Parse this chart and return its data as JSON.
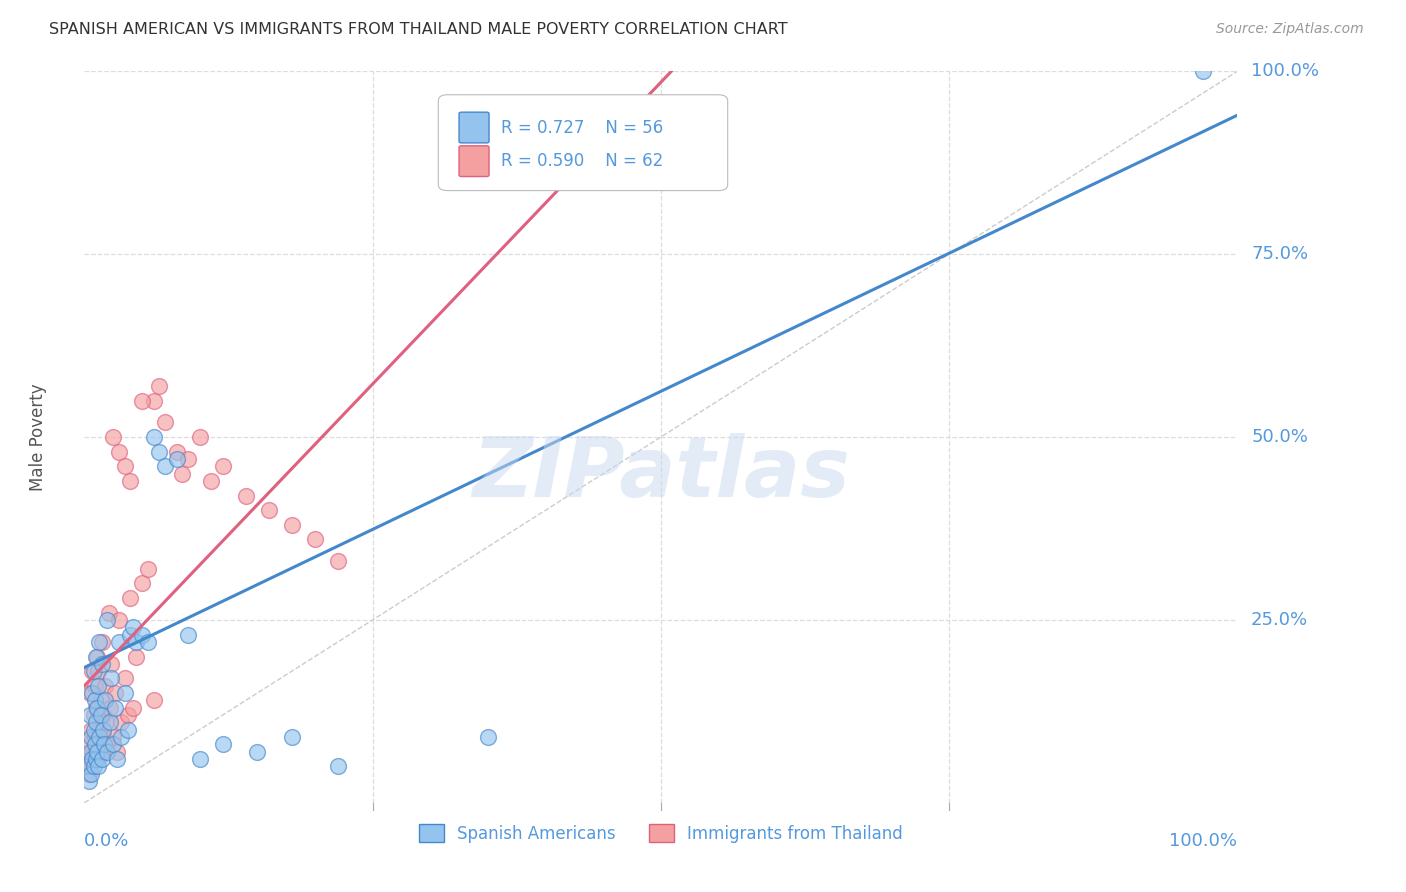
{
  "title": "SPANISH AMERICAN VS IMMIGRANTS FROM THAILAND MALE POVERTY CORRELATION CHART",
  "source": "Source: ZipAtlas.com",
  "ylabel": "Male Poverty",
  "watermark": "ZIPatlas",
  "legend1_label": "Spanish Americans",
  "legend2_label": "Immigrants from Thailand",
  "R1": "0.727",
  "N1": "56",
  "R2": "0.590",
  "N2": "62",
  "color_blue": "#94C4EE",
  "color_pink": "#F4A0A0",
  "color_blue_line": "#4488CC",
  "color_pink_line": "#E06080",
  "color_diag": "#CCCCCC",
  "axis_label_color": "#5599DD",
  "title_color": "#333333",
  "source_color": "#999999",
  "background_color": "#FFFFFF",
  "grid_color": "#DDDDDD",
  "blue_scatter_x": [
    0.003,
    0.004,
    0.005,
    0.005,
    0.006,
    0.006,
    0.007,
    0.007,
    0.008,
    0.008,
    0.008,
    0.009,
    0.009,
    0.01,
    0.01,
    0.01,
    0.011,
    0.011,
    0.012,
    0.012,
    0.013,
    0.013,
    0.014,
    0.015,
    0.015,
    0.016,
    0.017,
    0.018,
    0.02,
    0.02,
    0.022,
    0.023,
    0.025,
    0.027,
    0.028,
    0.03,
    0.032,
    0.035,
    0.038,
    0.04,
    0.042,
    0.045,
    0.05,
    0.055,
    0.06,
    0.065,
    0.07,
    0.08,
    0.09,
    0.1,
    0.12,
    0.15,
    0.18,
    0.22,
    0.35,
    0.97
  ],
  "blue_scatter_y": [
    0.05,
    0.03,
    0.07,
    0.12,
    0.04,
    0.09,
    0.06,
    0.15,
    0.05,
    0.1,
    0.18,
    0.08,
    0.14,
    0.06,
    0.11,
    0.2,
    0.07,
    0.13,
    0.05,
    0.16,
    0.09,
    0.22,
    0.12,
    0.06,
    0.19,
    0.1,
    0.08,
    0.14,
    0.07,
    0.25,
    0.11,
    0.17,
    0.08,
    0.13,
    0.06,
    0.22,
    0.09,
    0.15,
    0.1,
    0.23,
    0.24,
    0.22,
    0.23,
    0.22,
    0.5,
    0.48,
    0.46,
    0.47,
    0.23,
    0.06,
    0.08,
    0.07,
    0.09,
    0.05,
    0.09,
    1.0
  ],
  "pink_scatter_x": [
    0.003,
    0.004,
    0.005,
    0.005,
    0.006,
    0.006,
    0.007,
    0.007,
    0.008,
    0.008,
    0.009,
    0.009,
    0.01,
    0.01,
    0.011,
    0.011,
    0.012,
    0.012,
    0.013,
    0.014,
    0.015,
    0.015,
    0.016,
    0.017,
    0.018,
    0.019,
    0.02,
    0.021,
    0.022,
    0.023,
    0.025,
    0.027,
    0.028,
    0.03,
    0.032,
    0.035,
    0.038,
    0.04,
    0.042,
    0.045,
    0.05,
    0.055,
    0.06,
    0.065,
    0.07,
    0.08,
    0.085,
    0.09,
    0.1,
    0.11,
    0.12,
    0.14,
    0.16,
    0.18,
    0.2,
    0.22,
    0.025,
    0.03,
    0.035,
    0.04,
    0.05,
    0.06
  ],
  "pink_scatter_y": [
    0.06,
    0.04,
    0.08,
    0.15,
    0.05,
    0.1,
    0.07,
    0.18,
    0.06,
    0.12,
    0.09,
    0.16,
    0.07,
    0.13,
    0.08,
    0.2,
    0.06,
    0.18,
    0.1,
    0.14,
    0.07,
    0.22,
    0.12,
    0.09,
    0.16,
    0.11,
    0.08,
    0.26,
    0.13,
    0.19,
    0.09,
    0.15,
    0.07,
    0.25,
    0.11,
    0.17,
    0.12,
    0.28,
    0.13,
    0.2,
    0.3,
    0.32,
    0.55,
    0.57,
    0.52,
    0.48,
    0.45,
    0.47,
    0.5,
    0.44,
    0.46,
    0.42,
    0.4,
    0.38,
    0.36,
    0.33,
    0.5,
    0.48,
    0.46,
    0.44,
    0.55,
    0.14
  ]
}
